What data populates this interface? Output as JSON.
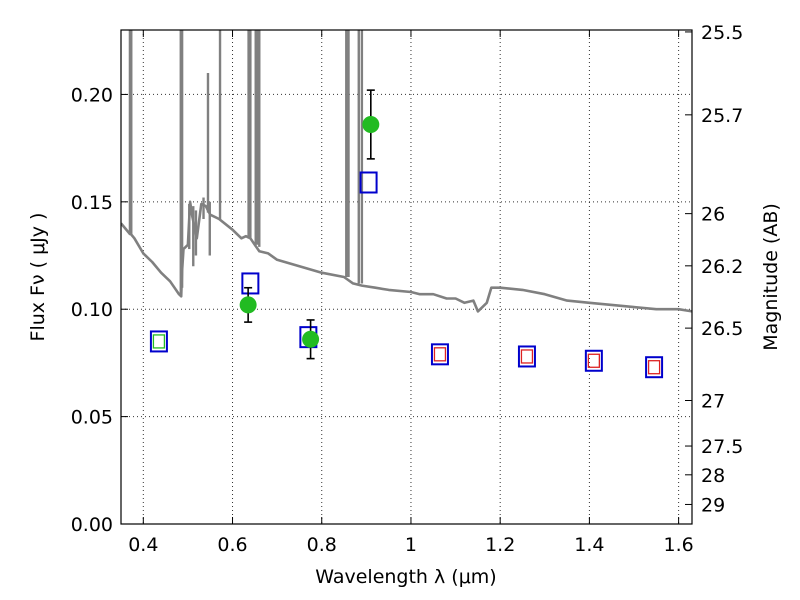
{
  "chart_data": {
    "type": "scatter",
    "xlabel": "Wavelength  λ (μm)",
    "ylabel": "Flux  Fν  ( μJy )",
    "y2label": "Magnitude (AB)",
    "xlim": [
      0.35,
      1.63
    ],
    "ylim": [
      0.0,
      0.23
    ],
    "xticks": [
      0.4,
      0.6,
      0.8,
      1.0,
      1.2,
      1.4,
      1.6
    ],
    "xtick_labels": [
      "0.4",
      "0.6",
      "0.8",
      "1",
      "1.2",
      "1.4",
      "1.6"
    ],
    "yticks": [
      0.0,
      0.05,
      0.1,
      0.15,
      0.2
    ],
    "ytick_labels": [
      "0.00",
      "0.05",
      "0.10",
      "0.15",
      "0.20"
    ],
    "y2ticks": [
      {
        "mag": "25.5",
        "flux": 0.2291
      },
      {
        "mag": "25.7",
        "flux": 0.1905
      },
      {
        "mag": "26",
        "flux": 0.1445
      },
      {
        "mag": "26.2",
        "flux": 0.1202
      },
      {
        "mag": "26.5",
        "flux": 0.0912
      },
      {
        "mag": "27",
        "flux": 0.0575
      },
      {
        "mag": "27.5",
        "flux": 0.0363
      },
      {
        "mag": "28",
        "flux": 0.0229
      },
      {
        "mag": "29",
        "flux": 0.0091
      }
    ],
    "grid": true,
    "colors": {
      "sed": "#808080",
      "observed": "#22bb22",
      "model_box": "#0000cc",
      "model_inner": "#dd2222",
      "error_bar": "#000000"
    },
    "sed_curve": {
      "x": [
        0.35,
        0.37,
        0.372,
        0.38,
        0.4,
        0.42,
        0.44,
        0.46,
        0.47,
        0.48,
        0.485,
        0.487,
        0.49,
        0.5,
        0.505,
        0.51,
        0.52,
        0.53,
        0.54,
        0.55,
        0.57,
        0.6,
        0.62,
        0.63,
        0.64,
        0.65,
        0.66,
        0.68,
        0.7,
        0.75,
        0.8,
        0.85,
        0.87,
        0.89,
        0.92,
        0.95,
        1.0,
        1.02,
        1.05,
        1.08,
        1.1,
        1.12,
        1.14,
        1.15,
        1.17,
        1.18,
        1.2,
        1.25,
        1.3,
        1.35,
        1.4,
        1.45,
        1.5,
        1.55,
        1.6,
        1.63
      ],
      "y": [
        0.14,
        0.135,
        0.135,
        0.133,
        0.126,
        0.122,
        0.117,
        0.113,
        0.11,
        0.107,
        0.106,
        0.118,
        0.128,
        0.13,
        0.15,
        0.143,
        0.133,
        0.149,
        0.148,
        0.144,
        0.142,
        0.137,
        0.133,
        0.134,
        0.133,
        0.13,
        0.127,
        0.126,
        0.123,
        0.12,
        0.117,
        0.115,
        0.112,
        0.111,
        0.11,
        0.109,
        0.108,
        0.107,
        0.107,
        0.105,
        0.105,
        0.103,
        0.104,
        0.099,
        0.103,
        0.11,
        0.11,
        0.109,
        0.107,
        0.104,
        0.103,
        0.102,
        0.101,
        0.1,
        0.1,
        0.099
      ]
    },
    "sed_spikes": [
      {
        "x": 0.37,
        "top": 0.23,
        "base": 0.135
      },
      {
        "x": 0.373,
        "top": 0.23,
        "base": 0.135
      },
      {
        "x": 0.484,
        "top": 0.23,
        "base": 0.107
      },
      {
        "x": 0.487,
        "top": 0.23,
        "base": 0.11
      },
      {
        "x": 0.503,
        "top": 0.149,
        "base": 0.128
      },
      {
        "x": 0.512,
        "top": 0.148,
        "base": 0.12
      },
      {
        "x": 0.518,
        "top": 0.146,
        "base": 0.125
      },
      {
        "x": 0.535,
        "top": 0.152,
        "base": 0.142
      },
      {
        "x": 0.545,
        "top": 0.21,
        "base": 0.145
      },
      {
        "x": 0.549,
        "top": 0.15,
        "base": 0.125
      },
      {
        "x": 0.572,
        "top": 0.23,
        "base": 0.142
      },
      {
        "x": 0.636,
        "top": 0.23,
        "base": 0.133
      },
      {
        "x": 0.64,
        "top": 0.23,
        "base": 0.133
      },
      {
        "x": 0.652,
        "top": 0.23,
        "base": 0.13
      },
      {
        "x": 0.656,
        "top": 0.23,
        "base": 0.13
      },
      {
        "x": 0.66,
        "top": 0.23,
        "base": 0.129
      },
      {
        "x": 0.855,
        "top": 0.23,
        "base": 0.115
      },
      {
        "x": 0.86,
        "top": 0.23,
        "base": 0.115
      },
      {
        "x": 0.883,
        "top": 0.23,
        "base": 0.112
      },
      {
        "x": 0.89,
        "top": 0.23,
        "base": 0.112
      }
    ],
    "observed": [
      {
        "x": 0.635,
        "y": 0.102,
        "err": 0.008
      },
      {
        "x": 0.775,
        "y": 0.086,
        "err": 0.009
      },
      {
        "x": 0.91,
        "y": 0.186,
        "err": 0.016
      }
    ],
    "model_boxes": [
      {
        "x": 0.435,
        "y": 0.085,
        "inner": true,
        "inner_color": "#22bb22"
      },
      {
        "x": 0.64,
        "y": 0.112,
        "inner": false
      },
      {
        "x": 0.77,
        "y": 0.087,
        "inner": false
      },
      {
        "x": 0.905,
        "y": 0.159,
        "inner": false
      },
      {
        "x": 1.065,
        "y": 0.079,
        "inner": true
      },
      {
        "x": 1.26,
        "y": 0.078,
        "inner": true
      },
      {
        "x": 1.41,
        "y": 0.076,
        "inner": true
      },
      {
        "x": 1.545,
        "y": 0.073,
        "inner": true
      }
    ]
  }
}
